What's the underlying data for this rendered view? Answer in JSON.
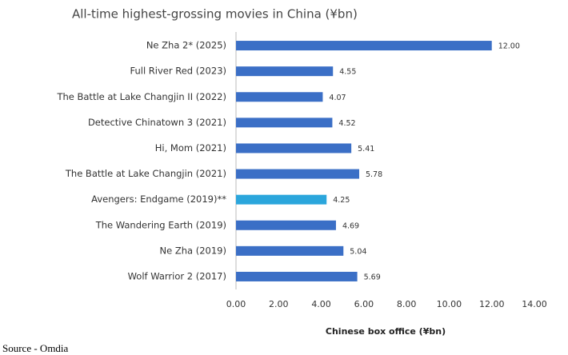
{
  "chart_data": {
    "type": "barh",
    "title": "All-time highest-grossing movies in China (¥bn)",
    "x_label": "Chinese box office (¥bn)",
    "source": "Source - Omdia",
    "categories": [
      "Ne Zha 2* (2025)",
      "Full River Red (2023)",
      "The Battle at Lake Changjin II (2022)",
      "Detective Chinatown 3 (2021)",
      "Hi, Mom (2021)",
      "The Battle at Lake Changjin (2021)",
      "Avengers: Endgame (2019)**",
      "The Wandering Earth (2019)",
      "Ne Zha (2019)",
      "Wolf Warrior 2 (2017)"
    ],
    "values": [
      12.0,
      4.55,
      4.07,
      4.52,
      5.41,
      5.78,
      4.25,
      4.69,
      5.04,
      5.69
    ],
    "value_labels": [
      "12.00",
      "4.55",
      "4.07",
      "4.52",
      "5.41",
      "5.78",
      "4.25",
      "4.69",
      "5.04",
      "5.69"
    ],
    "colors": [
      "#3b6fc6",
      "#3b6fc6",
      "#3b6fc6",
      "#3b6fc6",
      "#3b6fc6",
      "#3b6fc6",
      "#2ba6dc",
      "#3b6fc6",
      "#3b6fc6",
      "#3b6fc6"
    ],
    "xlim": [
      0,
      14
    ],
    "xticks": [
      {
        "value": 0,
        "label": "0.00"
      },
      {
        "value": 2,
        "label": "2.00"
      },
      {
        "value": 4,
        "label": "4.00"
      },
      {
        "value": 6,
        "label": "6.00"
      },
      {
        "value": 8,
        "label": "8.00"
      },
      {
        "value": 10,
        "label": "10.00"
      },
      {
        "value": 12,
        "label": "12.00"
      },
      {
        "value": 14,
        "label": "14.00"
      }
    ],
    "grid": false
  }
}
